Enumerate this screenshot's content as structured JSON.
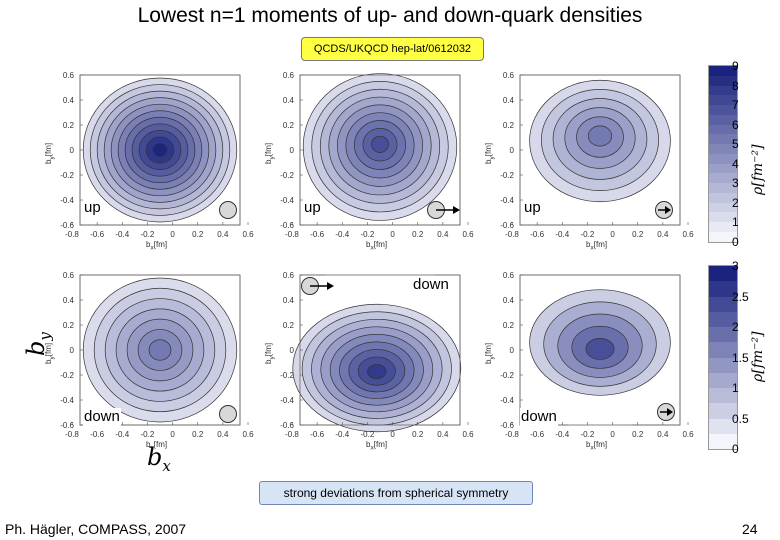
{
  "title": "Lowest n=1 moments of up- and down-quark densities",
  "reference": "QCDS/UKQCD hep-lat/0612032",
  "note": "strong deviations from spherical symmetry",
  "footer": "Ph. Hägler, COMPASS, 2007",
  "page_number": "24",
  "big_x_axis": "b",
  "big_x_axis_sub": "x",
  "big_y_axis": "b",
  "big_y_axis_sub": "y",
  "axis": {
    "xlabel": "b",
    "xlabel_sub": "x",
    "ylabel": "b",
    "ylabel_sub": "y",
    "unit": "[fm]",
    "xticks": [
      "-0.8",
      "-0.6",
      "-0.4",
      "-0.2",
      "0",
      "0.2",
      "0.4",
      "0.6"
    ],
    "yticks": [
      "0.6",
      "0.4",
      "0.2",
      "0",
      "-0.2",
      "-0.4",
      "-0.6"
    ]
  },
  "panels": [
    {
      "label": "up",
      "arrow": "none"
    },
    {
      "label": "up",
      "arrow": "right"
    },
    {
      "label": "up",
      "arrow": "right-inside"
    },
    {
      "label": "down",
      "arrow": "none"
    },
    {
      "label": "down",
      "arrow": "right"
    },
    {
      "label": "down",
      "arrow": "right-inside"
    }
  ],
  "colorbar_top": {
    "label": "ρ[fm⁻²]",
    "ticks": [
      "9",
      "8",
      "7",
      "6",
      "5",
      "4",
      "3",
      "2",
      "1",
      "0"
    ],
    "max_color": "#1a237e",
    "min_color": "#f4f5fb"
  },
  "colorbar_bottom": {
    "label": "ρ[fm⁻²]",
    "ticks": [
      "3",
      "2.5",
      "2",
      "1.5",
      "1",
      "0.5",
      "0"
    ],
    "max_color": "#1a237e",
    "min_color": "#f4f5fb"
  }
}
